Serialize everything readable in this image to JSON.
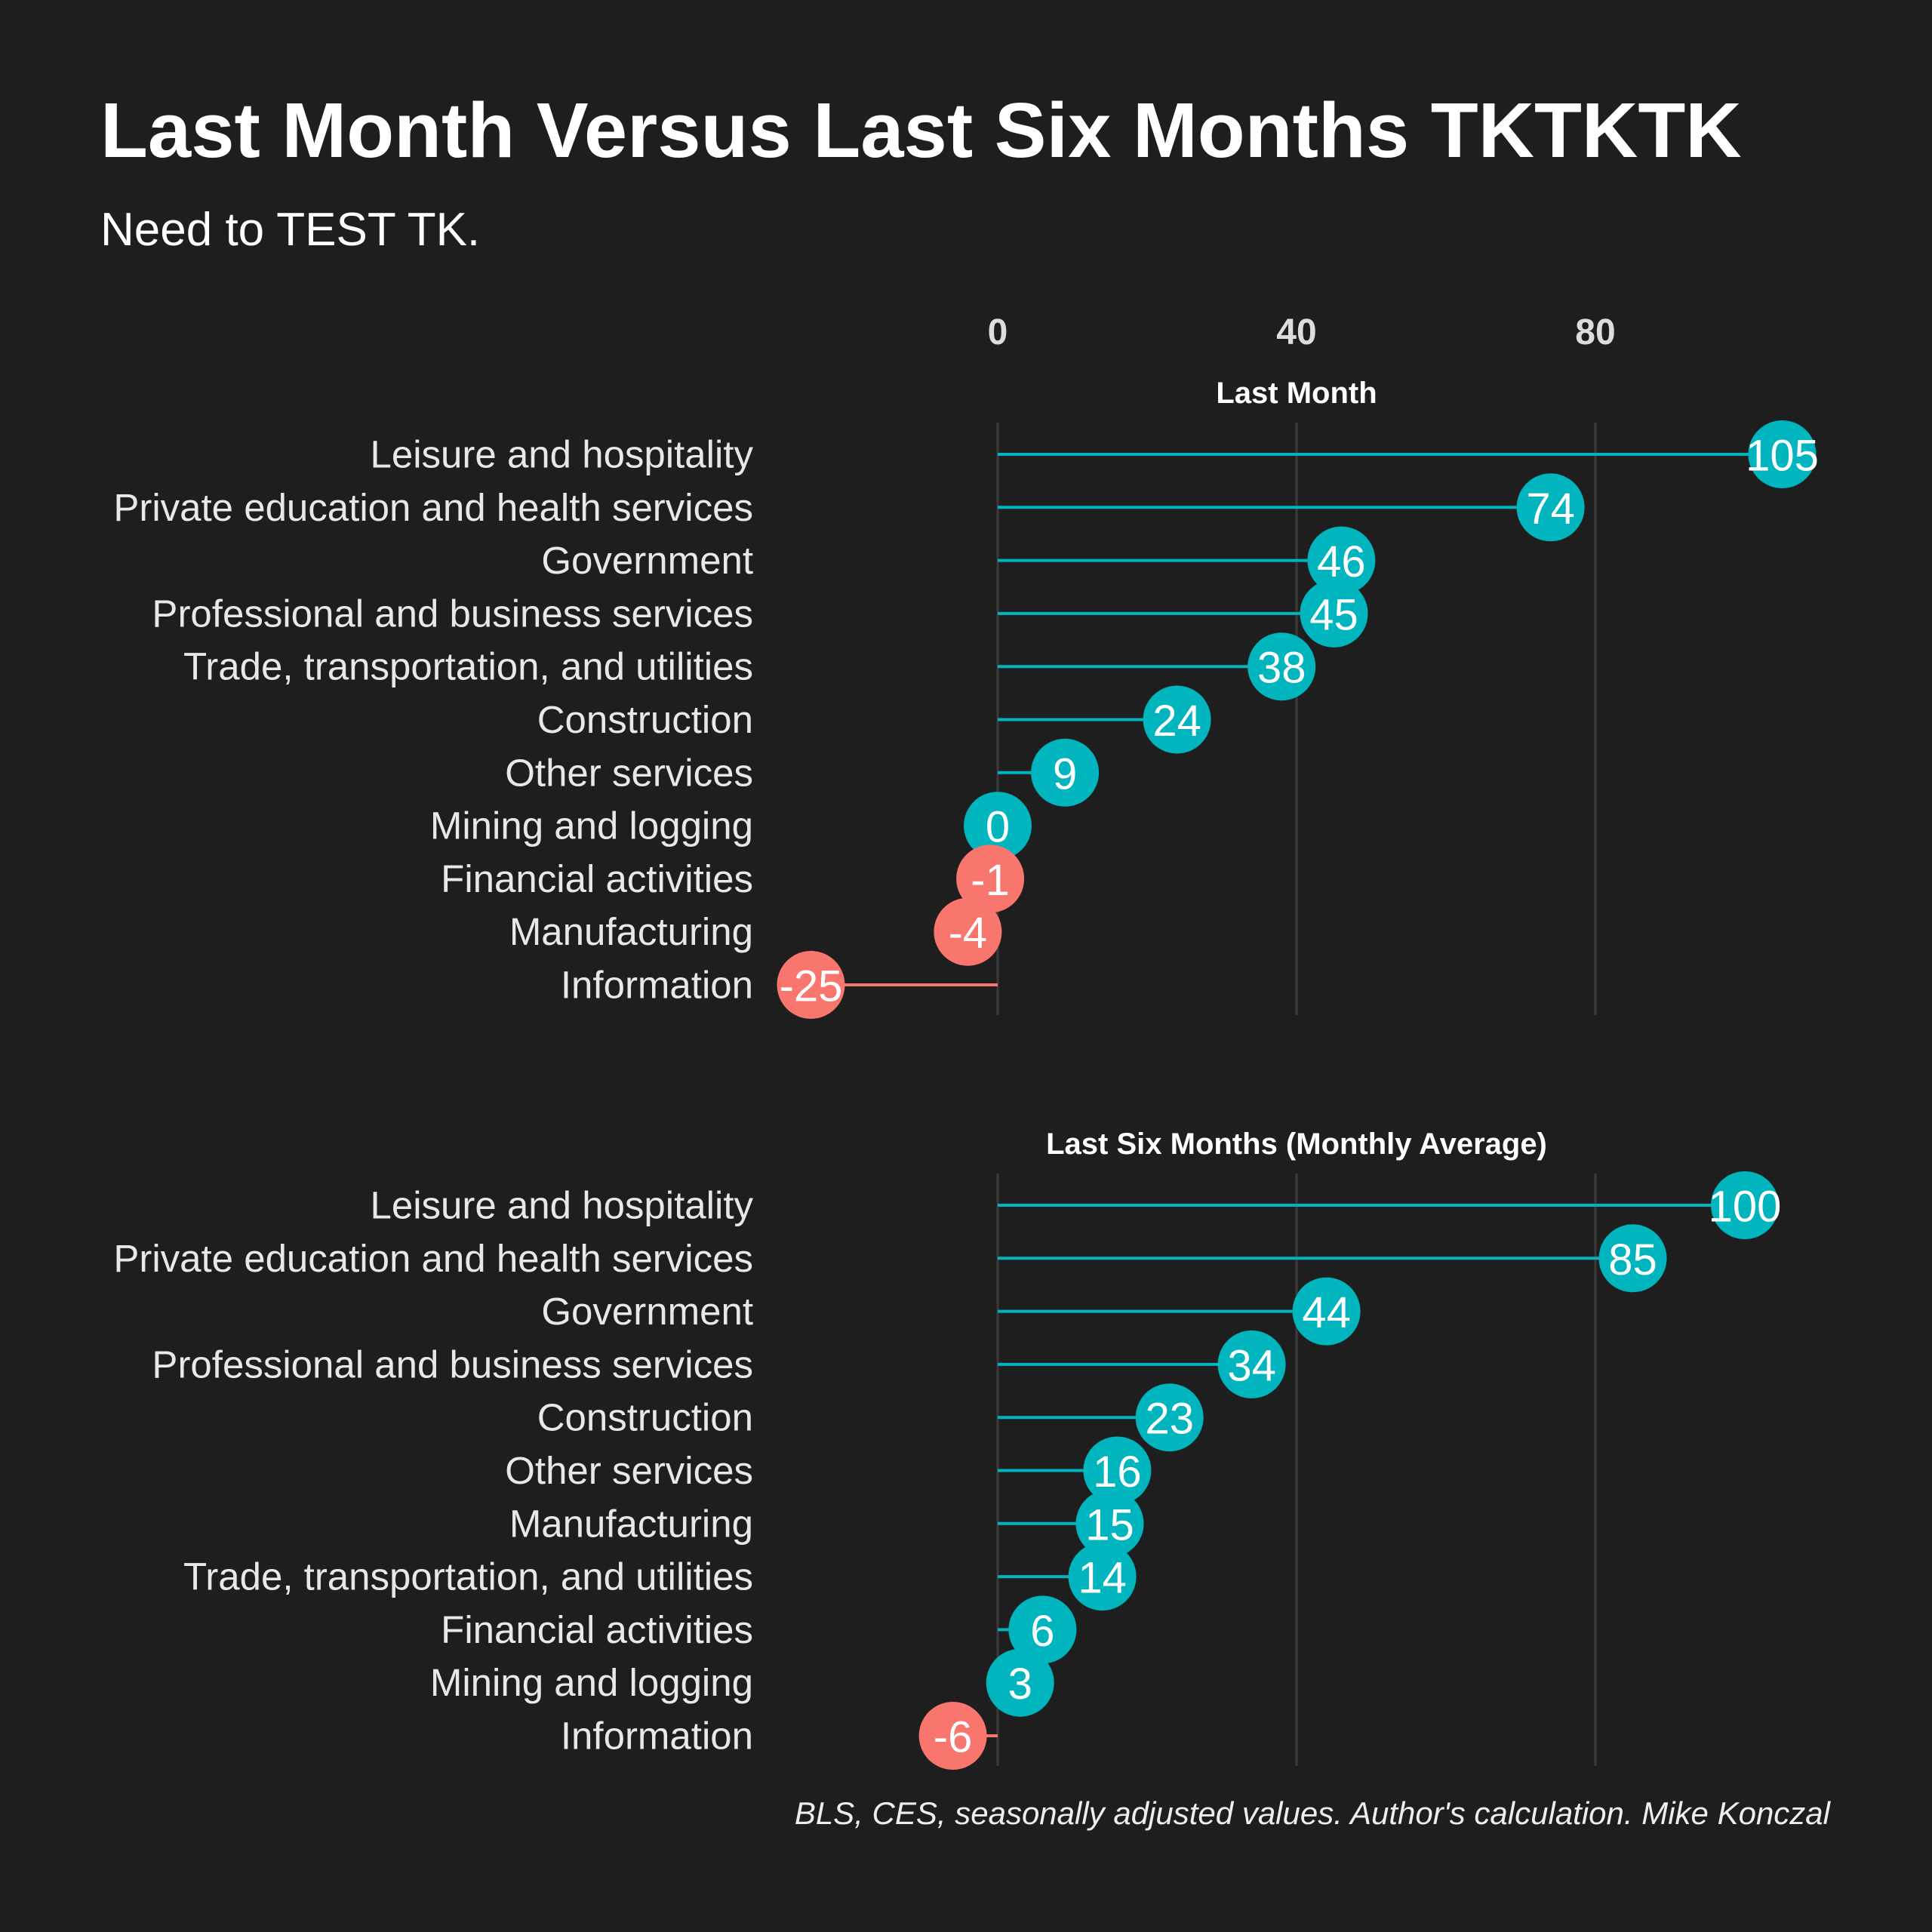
{
  "chart_data": {
    "type": "lollipop",
    "title": "Last Month Versus Last Six Months TKTKTK",
    "subtitle": "Need to TEST TK.",
    "caption": "BLS, CES, seasonally adjusted values. Author's calculation. Mike Konczal",
    "x_ticks": [
      0,
      40,
      80
    ],
    "xlim": [
      -25,
      105
    ],
    "grid": true,
    "colors": {
      "positive": "#00b5be",
      "negative": "#f8766d",
      "gridline": "#3a3a3a",
      "background": "#1e1e1e"
    },
    "panels": [
      {
        "label": "Last Month",
        "categories": [
          "Leisure and hospitality",
          "Private education and health services",
          "Government",
          "Professional and business services",
          "Trade, transportation, and utilities",
          "Construction",
          "Other services",
          "Mining and logging",
          "Financial activities",
          "Manufacturing",
          "Information"
        ],
        "values": [
          105,
          74,
          46,
          45,
          38,
          24,
          9,
          0,
          -1,
          -4,
          -25
        ]
      },
      {
        "label": "Last Six Months (Monthly Average)",
        "categories": [
          "Leisure and hospitality",
          "Private education and health services",
          "Government",
          "Professional and business services",
          "Construction",
          "Other services",
          "Manufacturing",
          "Trade, transportation, and utilities",
          "Financial activities",
          "Mining and logging",
          "Information"
        ],
        "values": [
          100,
          85,
          44,
          34,
          23,
          16,
          15,
          14,
          6,
          3,
          -6
        ]
      }
    ]
  }
}
